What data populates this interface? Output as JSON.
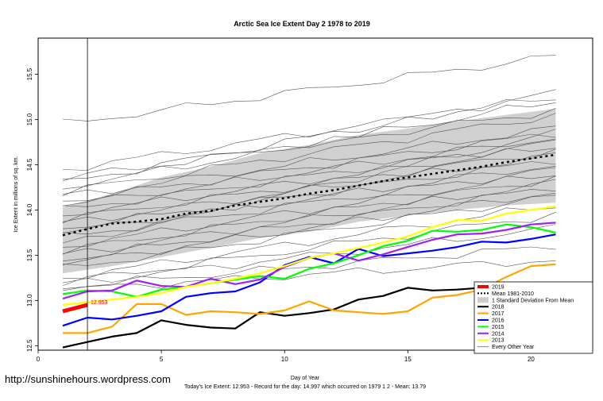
{
  "chart_data": {
    "type": "line",
    "title": "Arctic Sea Ice Extent Day 2 1978 to 2019",
    "xlabel": "Day of Year",
    "ylabel": "Ice Extent in millions of sq. km.",
    "xlim": [
      0,
      22.5
    ],
    "ylim": [
      12.45,
      15.9
    ],
    "xticks": [
      0,
      5,
      10,
      15,
      20
    ],
    "yticks": [
      12.5,
      13.0,
      13.5,
      14.0,
      14.5,
      15.0,
      15.5
    ],
    "ytick_labels": [
      "12.5",
      "13.0",
      "13.5",
      "14.0",
      "14.5",
      "15.0",
      "15.5"
    ],
    "current_day": 2,
    "current_value_label": "12.953",
    "watermark": "http://sunshinehours.wordpress.com",
    "footer": "Today's Ice Extent: 12.953  - Record for the day: 14.997 which occurred on 1979 1 2  - Mean: 13.79",
    "legend_position": "bottom-right",
    "legend": [
      {
        "label": "2019",
        "color": "#ff0000",
        "style": "thick"
      },
      {
        "label": "Mean 1981-2010",
        "color": "#000000",
        "style": "dotted"
      },
      {
        "label": "1 Standard Deviation From Mean",
        "color": "#cccccc",
        "style": "box"
      },
      {
        "label": "2018",
        "color": "#000000",
        "style": "solid"
      },
      {
        "label": "2017",
        "color": "#ffa500",
        "style": "solid"
      },
      {
        "label": "2016",
        "color": "#0000ff",
        "style": "solid"
      },
      {
        "label": "2015",
        "color": "#00ff00",
        "style": "solid"
      },
      {
        "label": "2014",
        "color": "#a020f0",
        "style": "solid"
      },
      {
        "label": "2013",
        "color": "#ffff00",
        "style": "solid"
      },
      {
        "label": "Every Other Year",
        "color": "#888888",
        "style": "thin"
      }
    ],
    "std_band": {
      "x": [
        1,
        3,
        5,
        7,
        9,
        11,
        13,
        15,
        17,
        19,
        21
      ],
      "upper": [
        14.03,
        14.18,
        14.36,
        14.48,
        14.63,
        14.72,
        14.83,
        14.9,
        14.98,
        15.05,
        15.12
      ],
      "lower": [
        13.3,
        13.38,
        13.48,
        13.58,
        13.69,
        13.76,
        13.87,
        13.94,
        14.0,
        14.05,
        14.08
      ]
    },
    "series": [
      {
        "name": "Mean 1981-2010",
        "color": "#000000",
        "style": "dotted",
        "x": [
          1,
          2,
          3,
          4,
          5,
          6,
          7,
          8,
          9,
          10,
          11,
          12,
          13,
          14,
          15,
          16,
          17,
          18,
          19,
          20,
          21
        ],
        "values": [
          13.72,
          13.79,
          13.85,
          13.87,
          13.9,
          13.96,
          13.99,
          14.05,
          14.09,
          14.13,
          14.18,
          14.22,
          14.27,
          14.32,
          14.36,
          14.4,
          14.44,
          14.48,
          14.53,
          14.57,
          14.61
        ]
      },
      {
        "name": "2018",
        "color": "#000000",
        "style": "solid",
        "x": [
          1,
          2,
          3,
          4,
          5,
          6,
          7,
          8,
          9,
          10,
          11,
          12,
          13,
          14,
          15,
          16,
          17,
          18,
          19,
          20,
          21
        ],
        "values": [
          12.48,
          12.54,
          12.6,
          12.64,
          12.78,
          12.73,
          12.7,
          12.69,
          12.87,
          12.83,
          12.86,
          12.9,
          13.01,
          13.05,
          13.14,
          13.11,
          13.12,
          13.14,
          13.15,
          13.18,
          13.18
        ]
      },
      {
        "name": "2017",
        "color": "#ffa500",
        "style": "solid",
        "x": [
          1,
          2,
          3,
          4,
          5,
          6,
          7,
          8,
          9,
          10,
          11,
          12,
          13,
          14,
          15,
          16,
          17,
          18,
          19,
          20,
          21
        ],
        "values": [
          12.64,
          12.64,
          12.71,
          12.96,
          12.96,
          12.84,
          12.88,
          12.87,
          12.85,
          12.89,
          12.99,
          12.89,
          12.87,
          12.85,
          12.88,
          13.03,
          13.06,
          13.12,
          13.26,
          13.38,
          13.4
        ]
      },
      {
        "name": "2016",
        "color": "#0000ff",
        "style": "solid",
        "x": [
          1,
          2,
          3,
          4,
          5,
          6,
          7,
          8,
          9,
          10,
          11,
          12,
          13,
          14,
          15,
          16,
          17,
          18,
          19,
          20,
          21
        ],
        "values": [
          12.72,
          12.81,
          12.79,
          12.83,
          12.88,
          13.04,
          13.08,
          13.1,
          13.2,
          13.39,
          13.48,
          13.41,
          13.57,
          13.49,
          13.52,
          13.55,
          13.59,
          13.65,
          13.64,
          13.68,
          13.73
        ]
      },
      {
        "name": "2015",
        "color": "#00ff00",
        "style": "solid",
        "x": [
          1,
          2,
          3,
          4,
          5,
          6,
          7,
          8,
          9,
          10,
          11,
          12,
          13,
          14,
          15,
          16,
          17,
          18,
          19,
          20,
          21
        ],
        "values": [
          13.07,
          13.11,
          13.1,
          13.04,
          13.12,
          13.15,
          13.19,
          13.23,
          13.27,
          13.24,
          13.35,
          13.41,
          13.5,
          13.6,
          13.66,
          13.77,
          13.76,
          13.78,
          13.84,
          13.81,
          13.75
        ]
      },
      {
        "name": "2014",
        "color": "#a020f0",
        "style": "solid",
        "x": [
          1,
          2,
          3,
          4,
          5,
          6,
          7,
          8,
          9,
          10,
          11,
          12,
          13,
          14,
          15,
          16,
          17,
          18,
          19,
          20,
          21
        ],
        "values": [
          13.02,
          13.1,
          13.11,
          13.22,
          13.16,
          13.15,
          13.24,
          13.18,
          13.23,
          13.37,
          13.47,
          13.52,
          13.44,
          13.51,
          13.59,
          13.67,
          13.73,
          13.74,
          13.78,
          13.84,
          13.86
        ]
      },
      {
        "name": "2013",
        "color": "#ffff00",
        "style": "solid",
        "x": [
          1,
          2,
          3,
          4,
          5,
          6,
          7,
          8,
          9,
          10,
          11,
          12,
          13,
          14,
          15,
          16,
          17,
          18,
          19,
          20,
          21
        ],
        "values": [
          12.95,
          12.98,
          13.01,
          13.04,
          13.08,
          13.15,
          13.19,
          13.24,
          13.3,
          13.38,
          13.47,
          13.52,
          13.58,
          13.64,
          13.71,
          13.81,
          13.89,
          13.88,
          13.96,
          14.0,
          14.04
        ]
      },
      {
        "name": "2019",
        "color": "#ff0000",
        "style": "thick",
        "x": [
          1,
          2
        ],
        "values": [
          12.88,
          12.95
        ]
      }
    ],
    "other_years": [
      {
        "start": 14.3,
        "end": 15.3
      },
      {
        "start": 14.25,
        "end": 15.2
      },
      {
        "start": 14.2,
        "end": 15.05
      },
      {
        "start": 14.15,
        "end": 14.9
      },
      {
        "start": 14.1,
        "end": 14.85
      },
      {
        "start": 14.05,
        "end": 14.8
      },
      {
        "start": 14.0,
        "end": 14.75
      },
      {
        "start": 13.95,
        "end": 14.7
      },
      {
        "start": 13.9,
        "end": 14.65
      },
      {
        "start": 13.85,
        "end": 14.6
      },
      {
        "start": 13.8,
        "end": 14.55
      },
      {
        "start": 13.75,
        "end": 14.5
      },
      {
        "start": 13.7,
        "end": 14.45
      },
      {
        "start": 13.6,
        "end": 14.4
      },
      {
        "start": 13.55,
        "end": 14.35
      },
      {
        "start": 13.5,
        "end": 14.3
      },
      {
        "start": 13.45,
        "end": 14.25
      },
      {
        "start": 13.4,
        "end": 14.2
      },
      {
        "start": 13.35,
        "end": 14.15
      },
      {
        "start": 13.25,
        "end": 14.05
      },
      {
        "start": 13.2,
        "end": 13.95
      },
      {
        "start": 13.18,
        "end": 13.8
      },
      {
        "start": 13.15,
        "end": 13.6
      },
      {
        "start": 13.12,
        "end": 13.45
      },
      {
        "start": 14.95,
        "end": 15.7
      },
      {
        "start": 14.45,
        "end": 15.25
      },
      {
        "start": 14.35,
        "end": 15.1
      },
      {
        "start": 13.62,
        "end": 14.85
      }
    ]
  }
}
